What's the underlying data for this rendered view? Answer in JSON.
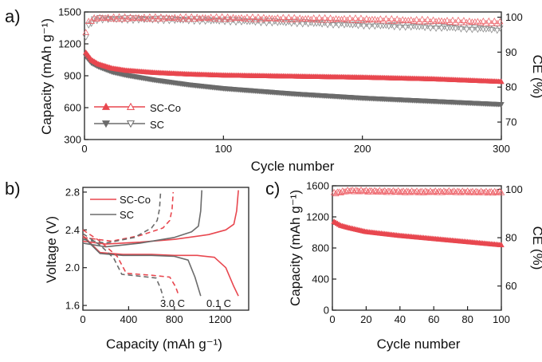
{
  "colors": {
    "sc_co": "#e8474f",
    "sc": "#6b6b6b",
    "ce_sc_co": "#ee6a70",
    "ce_sc": "#8c8c8c"
  },
  "chart_data": [
    {
      "type": "scatter",
      "panel_label": "a)",
      "xlabel": "Cycle number",
      "ylabel": "Capacity (mAh g⁻¹)",
      "y2label": "CE (%)",
      "xlim": [
        0,
        300
      ],
      "ylim": [
        300,
        1500
      ],
      "y2lim": [
        65,
        101.5
      ],
      "xticks": [
        0,
        100,
        200,
        300
      ],
      "yticks": [
        300,
        600,
        900,
        1200,
        1500
      ],
      "y2ticks": [
        70,
        80,
        90,
        100
      ],
      "legend": [
        "SC-Co",
        "SC"
      ],
      "legend_position": "lower-left",
      "series": [
        {
          "name": "SC-Co",
          "axis": "left",
          "marker": "filled-triangle-up",
          "x": [
            1,
            5,
            10,
            20,
            30,
            50,
            75,
            100,
            150,
            200,
            250,
            300
          ],
          "values": [
            1120,
            1050,
            1010,
            970,
            950,
            930,
            915,
            905,
            895,
            885,
            870,
            845
          ]
        },
        {
          "name": "SC",
          "axis": "left",
          "marker": "filled-triangle-down",
          "x": [
            1,
            5,
            10,
            20,
            30,
            50,
            75,
            100,
            150,
            200,
            250,
            300
          ],
          "values": [
            1080,
            1020,
            985,
            935,
            905,
            860,
            815,
            780,
            730,
            690,
            660,
            630
          ]
        },
        {
          "name": "SC-Co",
          "axis": "right",
          "marker": "open-triangle-up",
          "x": [
            1,
            3,
            6,
            10,
            50,
            100,
            150,
            200,
            250,
            300
          ],
          "values": [
            96,
            98.5,
            99.5,
            99.8,
            99.8,
            99.8,
            99.6,
            99.4,
            99.0,
            98.5
          ]
        },
        {
          "name": "SC",
          "axis": "right",
          "marker": "open-triangle-down",
          "x": [
            1,
            3,
            6,
            10,
            50,
            100,
            150,
            200,
            250,
            300
          ],
          "values": [
            94.5,
            97.5,
            99,
            99.5,
            99.4,
            99.0,
            98.5,
            97.8,
            97.2,
            96.5
          ]
        }
      ]
    },
    {
      "type": "line",
      "panel_label": "b)",
      "xlabel": "Capacity (mAh g⁻¹)",
      "ylabel": "Voltage (V)",
      "xlim": [
        0,
        1450
      ],
      "ylim": [
        1.55,
        2.85
      ],
      "xticks": [
        0,
        400,
        800,
        1200
      ],
      "yticks": [
        1.6,
        2.0,
        2.4,
        2.8
      ],
      "legend": [
        "SC-Co",
        "SC"
      ],
      "legend_position": "top-left",
      "annotations": [
        "3.0 C",
        "0.1 C"
      ],
      "series": [
        {
          "name": "SC-Co",
          "rate": "0.1 C",
          "style": "solid",
          "x": [
            0,
            150,
            350,
            600,
            800,
            1000,
            1150,
            1250,
            1320,
            1360
          ],
          "values": [
            2.34,
            2.16,
            2.14,
            2.14,
            2.13,
            2.13,
            2.11,
            2.0,
            1.8,
            1.7
          ]
        },
        {
          "name": "SC-Co",
          "rate": "0.1 C",
          "style": "solid",
          "x": [
            0,
            200,
            500,
            800,
            1100,
            1250,
            1320,
            1345,
            1360
          ],
          "values": [
            2.28,
            2.25,
            2.27,
            2.3,
            2.35,
            2.4,
            2.46,
            2.6,
            2.82
          ]
        },
        {
          "name": "SC",
          "rate": "0.1 C",
          "style": "solid",
          "x": [
            0,
            150,
            350,
            600,
            800,
            920,
            980,
            1030
          ],
          "values": [
            2.33,
            2.15,
            2.13,
            2.13,
            2.12,
            2.08,
            1.9,
            1.7
          ]
        },
        {
          "name": "SC",
          "rate": "0.1 C",
          "style": "solid",
          "x": [
            0,
            200,
            500,
            800,
            950,
            1010,
            1030,
            1040
          ],
          "values": [
            2.26,
            2.22,
            2.26,
            2.32,
            2.38,
            2.44,
            2.6,
            2.82
          ]
        },
        {
          "name": "SC-Co",
          "rate": "3.0 C",
          "style": "dashed",
          "x": [
            0,
            150,
            300,
            380,
            600,
            760,
            810,
            840
          ],
          "values": [
            2.4,
            2.28,
            2.12,
            1.94,
            1.92,
            1.9,
            1.8,
            1.7
          ]
        },
        {
          "name": "SC-Co",
          "rate": "3.0 C",
          "style": "dashed",
          "x": [
            0,
            250,
            500,
            700,
            760,
            780,
            790
          ],
          "values": [
            2.32,
            2.28,
            2.34,
            2.42,
            2.5,
            2.62,
            2.8
          ]
        },
        {
          "name": "SC",
          "rate": "3.0 C",
          "style": "dashed",
          "x": [
            0,
            150,
            270,
            340,
            500,
            640,
            680,
            705
          ],
          "values": [
            2.36,
            2.24,
            2.1,
            1.93,
            1.91,
            1.89,
            1.78,
            1.68
          ]
        },
        {
          "name": "SC",
          "rate": "3.0 C",
          "style": "dashed",
          "x": [
            0,
            200,
            450,
            600,
            650,
            670,
            680
          ],
          "values": [
            2.3,
            2.26,
            2.32,
            2.42,
            2.5,
            2.62,
            2.8
          ]
        }
      ]
    },
    {
      "type": "scatter",
      "panel_label": "c)",
      "xlabel": "Cycle number",
      "ylabel": "Capacity (mAh g⁻¹)",
      "y2label": "CE (%)",
      "xlim": [
        0,
        100
      ],
      "ylim": [
        0,
        1600
      ],
      "y2lim": [
        50,
        101.5
      ],
      "xticks": [
        0,
        20,
        40,
        60,
        80,
        100
      ],
      "yticks": [
        0,
        400,
        800,
        1200,
        1600
      ],
      "y2ticks": [
        60,
        80,
        100
      ],
      "series": [
        {
          "name": "SC-Co",
          "axis": "left",
          "marker": "filled-triangle-up",
          "x": [
            1,
            5,
            10,
            20,
            40,
            60,
            80,
            100
          ],
          "values": [
            1140,
            1090,
            1060,
            1010,
            960,
            920,
            880,
            840
          ]
        },
        {
          "name": "SC-Co",
          "axis": "right",
          "marker": "open-triangle-up",
          "x": [
            1,
            10,
            30,
            50,
            70,
            90,
            100
          ],
          "values": [
            98.5,
            99.5,
            99.2,
            99.0,
            99.1,
            98.9,
            98.9
          ]
        }
      ]
    }
  ]
}
